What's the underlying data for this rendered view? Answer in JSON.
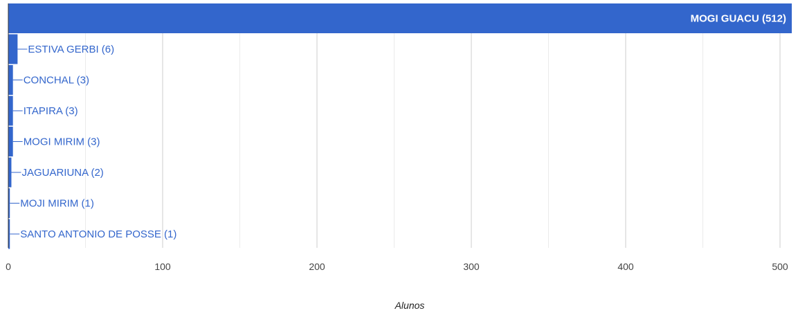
{
  "chart_data": {
    "type": "bar",
    "orientation": "horizontal",
    "categories": [
      "MOGI GUACU",
      "ESTIVA GERBI",
      "CONCHAL",
      "ITAPIRA",
      "MOGI MIRIM",
      "JAGUARIUNA",
      "MOJI MIRIM",
      "SANTO ANTONIO DE POSSE"
    ],
    "values": [
      512,
      6,
      3,
      3,
      3,
      2,
      1,
      1
    ],
    "data_labels": [
      "MOGI GUACU (512)",
      "ESTIVA GERBI (6)",
      "CONCHAL (3)",
      "ITAPIRA (3)",
      "MOGI MIRIM (3)",
      "JAGUARIUNA (2)",
      "MOJI MIRIM (1)",
      "SANTO ANTONIO DE POSSE (1)"
    ],
    "title": "",
    "xlabel": "Alunos",
    "ylabel": "",
    "xlim": [
      0,
      500
    ],
    "xticks": [
      "0",
      "100",
      "200",
      "300",
      "400",
      "500"
    ],
    "grid": true,
    "legend": "none"
  },
  "colors": {
    "bar": "#3366cc",
    "label": "#3366cc",
    "label_inside": "#ffffff",
    "grid": "#cccccc",
    "minor_grid": "#ebebeb",
    "axis": "#333333",
    "tick_text": "#444444",
    "axis_title": "#222222"
  }
}
